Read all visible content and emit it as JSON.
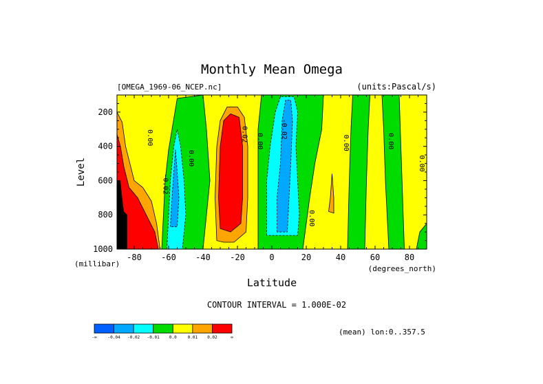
{
  "chart_data": {
    "type": "heatmap",
    "title": "Monthly Mean Omega",
    "dataset_label": "[OMEGA_1969-06_NCEP.nc]",
    "units_label": "(units:Pascal/s)",
    "xlabel": "Latitude",
    "x_units": "(degrees_north)",
    "ylabel": "Level",
    "y_units": "(millibar)",
    "xlim": [
      -90,
      90
    ],
    "ylim": [
      100,
      1000
    ],
    "y_reversed": true,
    "x_ticks": [
      {
        "value": -80,
        "label": "-80"
      },
      {
        "value": -60,
        "label": "-60"
      },
      {
        "value": -40,
        "label": "-40"
      },
      {
        "value": -20,
        "label": "-20"
      },
      {
        "value": 0,
        "label": "0"
      },
      {
        "value": 20,
        "label": "20"
      },
      {
        "value": 40,
        "label": "40"
      },
      {
        "value": 60,
        "label": "60"
      },
      {
        "value": 80,
        "label": "80"
      }
    ],
    "y_ticks": [
      {
        "value": 200,
        "label": "200"
      },
      {
        "value": 400,
        "label": "400"
      },
      {
        "value": 600,
        "label": "600"
      },
      {
        "value": 800,
        "label": "800"
      },
      {
        "value": 1000,
        "label": "1000"
      }
    ],
    "background_level": "yellow",
    "regions": [
      {
        "level": "green",
        "points": [
          [
            -64,
            1000
          ],
          [
            -63,
            800
          ],
          [
            -62,
            600
          ],
          [
            -60,
            420
          ],
          [
            -58,
            300
          ],
          [
            -55,
            120
          ],
          [
            -40,
            100
          ],
          [
            -38,
            300
          ],
          [
            -36,
            600
          ],
          [
            -38,
            800
          ],
          [
            -40,
            1000
          ]
        ]
      },
      {
        "level": "cyan",
        "points": [
          [
            -61,
            1000
          ],
          [
            -60,
            800
          ],
          [
            -59,
            600
          ],
          [
            -57,
            400
          ],
          [
            -55,
            300
          ],
          [
            -53,
            400
          ],
          [
            -51,
            600
          ],
          [
            -50,
            800
          ],
          [
            -52,
            1000
          ]
        ]
      },
      {
        "level": "blue_light",
        "points": [
          [
            -59,
            870
          ],
          [
            -58,
            700
          ],
          [
            -57,
            550
          ],
          [
            -56,
            420
          ],
          [
            -55,
            550
          ],
          [
            -54,
            700
          ],
          [
            -55,
            870
          ]
        ]
      },
      {
        "level": "green",
        "points": [
          [
            -8,
            1000
          ],
          [
            -8,
            300
          ],
          [
            -6,
            100
          ],
          [
            30,
            100
          ],
          [
            29,
            300
          ],
          [
            25,
            500
          ],
          [
            22,
            700
          ],
          [
            20,
            850
          ],
          [
            18,
            1000
          ]
        ]
      },
      {
        "level": "cyan",
        "points": [
          [
            -3,
            920
          ],
          [
            -3,
            600
          ],
          [
            -1,
            400
          ],
          [
            2,
            200
          ],
          [
            5,
            110
          ],
          [
            13,
            110
          ],
          [
            15,
            200
          ],
          [
            14,
            400
          ],
          [
            15,
            600
          ],
          [
            16,
            800
          ],
          [
            15,
            920
          ]
        ]
      },
      {
        "level": "blue_light",
        "points": [
          [
            3,
            900
          ],
          [
            3,
            700
          ],
          [
            5,
            500
          ],
          [
            6,
            250
          ],
          [
            8,
            130
          ],
          [
            11,
            130
          ],
          [
            12,
            250
          ],
          [
            11,
            500
          ],
          [
            10,
            700
          ],
          [
            9,
            900
          ]
        ]
      },
      {
        "level": "green",
        "points": [
          [
            44,
            1000
          ],
          [
            45,
            600
          ],
          [
            46,
            300
          ],
          [
            47,
            100
          ],
          [
            57,
            100
          ],
          [
            56,
            300
          ],
          [
            55,
            600
          ],
          [
            54,
            1000
          ]
        ]
      },
      {
        "level": "green",
        "points": [
          [
            68,
            1000
          ],
          [
            66,
            600
          ],
          [
            65,
            300
          ],
          [
            64,
            100
          ],
          [
            74,
            100
          ],
          [
            75,
            400
          ],
          [
            76,
            700
          ],
          [
            77,
            1000
          ]
        ]
      },
      {
        "level": "green",
        "points": [
          [
            84,
            1000
          ],
          [
            86,
            900
          ],
          [
            90,
            850
          ],
          [
            90,
            1000
          ]
        ]
      },
      {
        "level": "orange",
        "points": [
          [
            -32,
            950
          ],
          [
            -33,
            700
          ],
          [
            -32,
            400
          ],
          [
            -30,
            250
          ],
          [
            -26,
            170
          ],
          [
            -20,
            170
          ],
          [
            -16,
            230
          ],
          [
            -14,
            400
          ],
          [
            -14,
            700
          ],
          [
            -15,
            900
          ],
          [
            -22,
            960
          ],
          [
            -28,
            960
          ]
        ]
      },
      {
        "level": "red",
        "points": [
          [
            -30,
            880
          ],
          [
            -31,
            700
          ],
          [
            -30,
            400
          ],
          [
            -28,
            250
          ],
          [
            -24,
            210
          ],
          [
            -19,
            230
          ],
          [
            -17,
            400
          ],
          [
            -17,
            700
          ],
          [
            -18,
            850
          ],
          [
            -24,
            900
          ]
        ]
      },
      {
        "level": "orange",
        "points": [
          [
            -90,
            1000
          ],
          [
            -90,
            200
          ],
          [
            -87,
            260
          ],
          [
            -85,
            400
          ],
          [
            -80,
            600
          ],
          [
            -75,
            640
          ],
          [
            -70,
            720
          ],
          [
            -67,
            850
          ],
          [
            -65,
            1000
          ]
        ]
      },
      {
        "level": "red",
        "points": [
          [
            -90,
            1000
          ],
          [
            -90,
            330
          ],
          [
            -88,
            400
          ],
          [
            -86,
            520
          ],
          [
            -83,
            640
          ],
          [
            -78,
            700
          ],
          [
            -72,
            820
          ],
          [
            -68,
            900
          ],
          [
            -66,
            1000
          ]
        ]
      },
      {
        "level": "orange",
        "points": [
          [
            33,
            780
          ],
          [
            34,
            700
          ],
          [
            35,
            560
          ],
          [
            36,
            700
          ],
          [
            36,
            790
          ]
        ]
      }
    ],
    "missing_regions": [
      {
        "points": [
          [
            -90,
            1000
          ],
          [
            -90,
            600
          ],
          [
            -88,
            600
          ],
          [
            -87,
            700
          ],
          [
            -86,
            780
          ],
          [
            -84,
            800
          ],
          [
            -84,
            1000
          ]
        ]
      }
    ],
    "contour_labels": [
      {
        "text": "0.00",
        "lat": -72,
        "lev": 350
      },
      {
        "text": "0.00",
        "lat": -48,
        "lev": 470
      },
      {
        "text": "-0.02",
        "lat": -63,
        "lev": 620
      },
      {
        "text": "0.02",
        "lat": -17,
        "lev": 330
      },
      {
        "text": "0.00",
        "lat": -8,
        "lev": 370
      },
      {
        "text": "-0.02",
        "lat": 6,
        "lev": 300
      },
      {
        "text": "0.00",
        "lat": 22,
        "lev": 820
      },
      {
        "text": "0.00",
        "lat": 42,
        "lev": 380
      },
      {
        "text": "0.00",
        "lat": 68,
        "lev": 370
      },
      {
        "text": "0.00",
        "lat": 86,
        "lev": 500
      }
    ],
    "contour_interval": "CONTOUR INTERVAL = 1.000E-02",
    "colorbar": {
      "colors": [
        "#0060ff",
        "#00a8ff",
        "#00ffff",
        "#00dc00",
        "#ffff00",
        "#ffa500",
        "#ff0000"
      ],
      "labels": [
        "-∞",
        "-0.04",
        "-0.02",
        "-0.01",
        "0.0",
        "0.01",
        "0.02",
        "∞"
      ]
    },
    "footnote": "(mean) lon:0..357.5"
  }
}
